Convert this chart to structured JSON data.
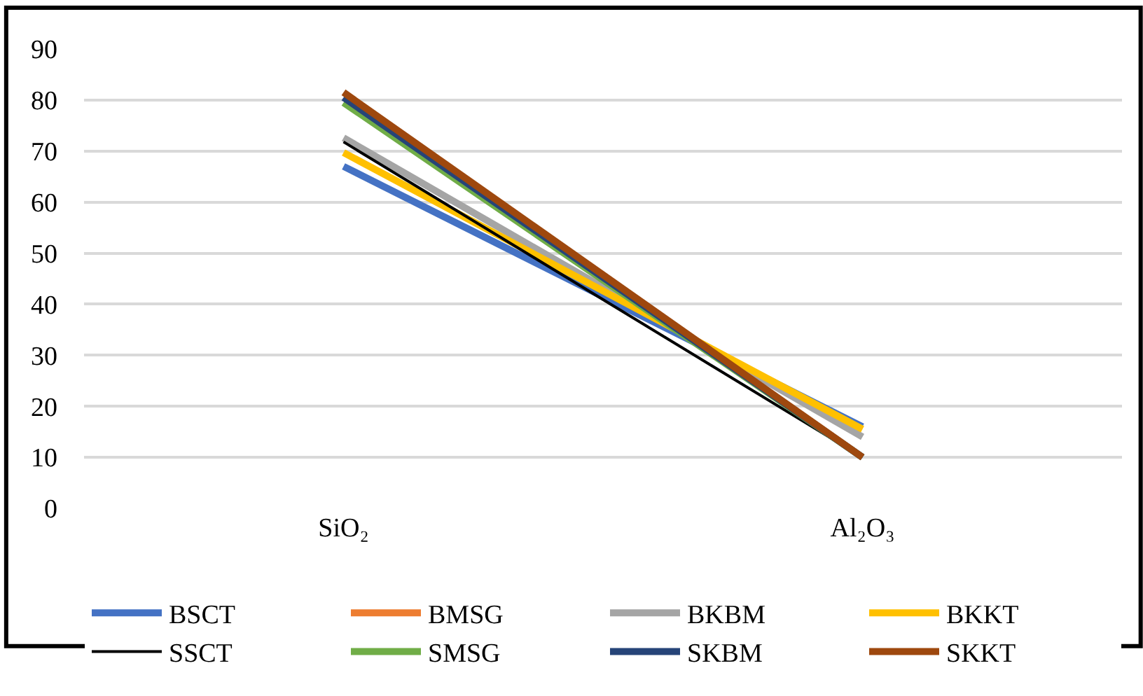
{
  "chart_data": {
    "type": "line",
    "categories": [
      "SiO₂",
      "Al₂O₃"
    ],
    "series": [
      {
        "name": "BSCT",
        "color": "#4472c4",
        "values": [
          67,
          16
        ]
      },
      {
        "name": "BMSG",
        "color": "#ed7d31",
        "values": [
          null,
          null
        ]
      },
      {
        "name": "BKBM",
        "color": "#a5a5a5",
        "values": [
          72.6,
          14
        ]
      },
      {
        "name": "BKKT",
        "color": "#ffc000",
        "values": [
          69.7,
          15.5
        ]
      },
      {
        "name": "SSCT",
        "color": "#000000",
        "values": [
          71.8,
          10
        ]
      },
      {
        "name": "SMSG",
        "color": "#70ad47",
        "values": [
          79.5,
          10
        ]
      },
      {
        "name": "SKBM",
        "color": "#264478",
        "values": [
          80.5,
          10
        ]
      },
      {
        "name": "SKKT",
        "color": "#9e480e",
        "values": [
          81.5,
          10
        ]
      }
    ],
    "ylim": [
      0,
      90
    ],
    "yticks": [
      0,
      10,
      20,
      30,
      40,
      50,
      60,
      70,
      80,
      90
    ],
    "grid": "y",
    "legend": "bottom",
    "marker": "none",
    "line_style": "solid"
  }
}
